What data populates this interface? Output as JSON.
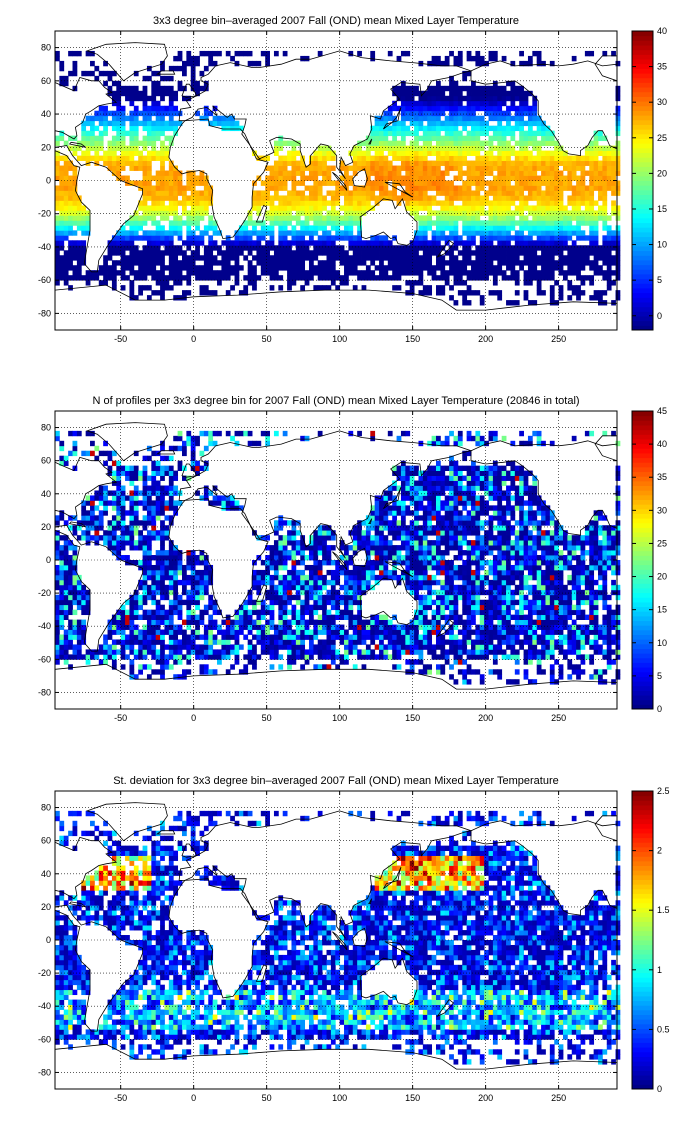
{
  "chart_data": [
    {
      "type": "heatmap",
      "title": "3x3 degree bin–averaged 2007 Fall (OND) mean Mixed Layer Temperature",
      "xlim": [
        -95,
        290
      ],
      "ylim": [
        -90,
        90
      ],
      "x_ticks": [
        -50,
        0,
        50,
        100,
        150,
        200,
        250
      ],
      "y_ticks": [
        80,
        60,
        40,
        20,
        0,
        -20,
        -40,
        -60,
        -80
      ],
      "grid": true,
      "colormap": "jet",
      "bin_size_deg": 3,
      "clim": [
        -2,
        40
      ],
      "colorbar_ticks": [
        40,
        35,
        30,
        25,
        20,
        15,
        10,
        5,
        0
      ],
      "field": "temperature"
    },
    {
      "type": "heatmap",
      "title": "N of profiles per 3x3 degree bin for 2007 Fall (OND) mean Mixed Layer Temperature  (20846 in total)",
      "xlim": [
        -95,
        290
      ],
      "ylim": [
        -90,
        90
      ],
      "x_ticks": [
        -50,
        0,
        50,
        100,
        150,
        200,
        250
      ],
      "y_ticks": [
        80,
        60,
        40,
        20,
        0,
        -20,
        -40,
        -60,
        -80
      ],
      "grid": true,
      "colormap": "jet",
      "bin_size_deg": 3,
      "clim": [
        0,
        45
      ],
      "colorbar_ticks": [
        45,
        40,
        35,
        30,
        25,
        20,
        15,
        10,
        5,
        0
      ],
      "field": "count",
      "total": 20846
    },
    {
      "type": "heatmap",
      "title": "St. deviation for 3x3 degree bin–averaged 2007 Fall (OND) mean Mixed Layer Temperature",
      "xlim": [
        -95,
        290
      ],
      "ylim": [
        -90,
        90
      ],
      "x_ticks": [
        -50,
        0,
        50,
        100,
        150,
        200,
        250
      ],
      "y_ticks": [
        80,
        60,
        40,
        20,
        0,
        -20,
        -40,
        -60,
        -80
      ],
      "grid": true,
      "colormap": "jet",
      "bin_size_deg": 3,
      "clim": [
        0,
        2.5
      ],
      "colorbar_ticks": [
        2.5,
        2,
        1.5,
        1,
        0.5,
        0
      ],
      "field": "stdev"
    }
  ]
}
